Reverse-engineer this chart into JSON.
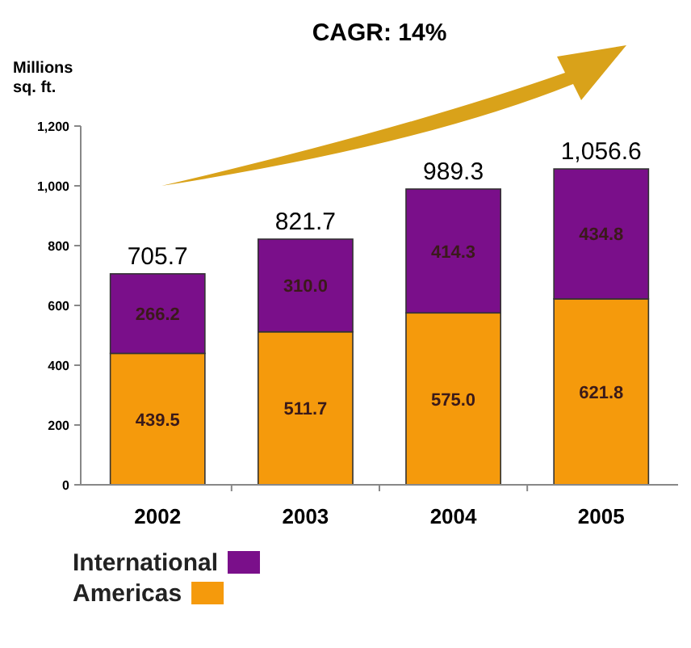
{
  "chart_data": {
    "type": "bar",
    "title": "CAGR: 14%",
    "ylabel": "Millions\nsq. ft.",
    "categories": [
      "2002",
      "2003",
      "2004",
      "2005"
    ],
    "stacked": true,
    "series": [
      {
        "name": "Americas",
        "color": "#f59a0c",
        "values": [
          439.5,
          511.7,
          575.0,
          621.8
        ],
        "value_labels": [
          "439.5",
          "511.7",
          "575.0",
          "621.8"
        ]
      },
      {
        "name": "International",
        "color": "#7a0f8a",
        "values": [
          266.2,
          310.0,
          414.3,
          434.8
        ],
        "value_labels": [
          "266.2",
          "310.0",
          "414.3",
          "434.8"
        ]
      }
    ],
    "totals": [
      "705.7",
      "821.7",
      "989.3",
      "1,056.6"
    ],
    "ylim": [
      0,
      1200
    ],
    "yticks": [
      0,
      200,
      400,
      600,
      800,
      {
        "value": 1000,
        "label": "1,000"
      },
      {
        "value": 1200,
        "label": "1,200"
      }
    ],
    "grid": false,
    "legend": "bottom left"
  }
}
